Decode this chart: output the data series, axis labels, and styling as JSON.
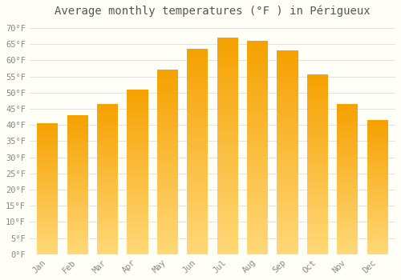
{
  "title": "Average monthly temperatures (°F ) in Périgueux",
  "months": [
    "Jan",
    "Feb",
    "Mar",
    "Apr",
    "May",
    "Jun",
    "Jul",
    "Aug",
    "Sep",
    "Oct",
    "Nov",
    "Dec"
  ],
  "values": [
    40.5,
    43.0,
    46.5,
    51.0,
    57.0,
    63.5,
    67.0,
    66.0,
    63.0,
    55.5,
    46.5,
    41.5
  ],
  "bar_color": "#FFA500",
  "bar_edge_color": "none",
  "background_color": "#FFFFF8",
  "grid_color": "#DDDDDD",
  "yticks": [
    0,
    5,
    10,
    15,
    20,
    25,
    30,
    35,
    40,
    45,
    50,
    55,
    60,
    65,
    70
  ],
  "ylim": [
    0,
    72
  ],
  "title_fontsize": 10,
  "tick_fontsize": 7.5,
  "title_color": "#555555",
  "tick_color": "#888888",
  "bar_width": 0.7
}
